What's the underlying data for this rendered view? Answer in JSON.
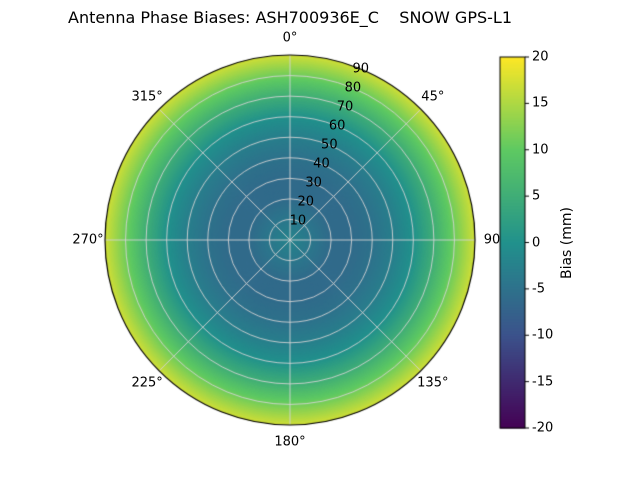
{
  "chart_data": {
    "type": "heatmap",
    "subtype": "polar",
    "title": "Antenna Phase Biases: ASH700936E_C    SNOW GPS-L1",
    "angular_labels": [
      {
        "azimuth": 0,
        "label": "0°"
      },
      {
        "azimuth": 45,
        "label": "45°"
      },
      {
        "azimuth": 90,
        "label": "90"
      },
      {
        "azimuth": 135,
        "label": "135°"
      },
      {
        "azimuth": 180,
        "label": "180°"
      },
      {
        "azimuth": 225,
        "label": "225°"
      },
      {
        "azimuth": 270,
        "label": "270°"
      },
      {
        "azimuth": 315,
        "label": "315°"
      }
    ],
    "radial_ticks": [
      10,
      20,
      30,
      40,
      50,
      60,
      70,
      80,
      90
    ],
    "radial_label_azimuth": 22.5,
    "radial_max": 90,
    "grid": {
      "rings_every_deg": 10,
      "spokes_every_deg": 45,
      "color": "#d4d4d4"
    },
    "profile": {
      "description": "azimuthally-symmetric radial bias profile, zenith angle vs bias",
      "zenith_deg": [
        0,
        10,
        20,
        30,
        40,
        50,
        60,
        70,
        80,
        90
      ],
      "bias_mm": [
        -2,
        -4,
        -6,
        -6,
        -5,
        -3,
        0,
        5,
        11,
        17
      ]
    },
    "colorbar": {
      "label": "Bias (mm)",
      "min": -20,
      "max": 20,
      "ticks": [
        20,
        15,
        10,
        5,
        0,
        -5,
        -10,
        -15,
        -20
      ],
      "colormap": "viridis",
      "colormap_stops": [
        {
          "t": 0.0,
          "color": "#440154"
        },
        {
          "t": 0.25,
          "color": "#3b528b"
        },
        {
          "t": 0.5,
          "color": "#21918c"
        },
        {
          "t": 0.75,
          "color": "#5ec962"
        },
        {
          "t": 1.0,
          "color": "#fde725"
        }
      ]
    }
  }
}
